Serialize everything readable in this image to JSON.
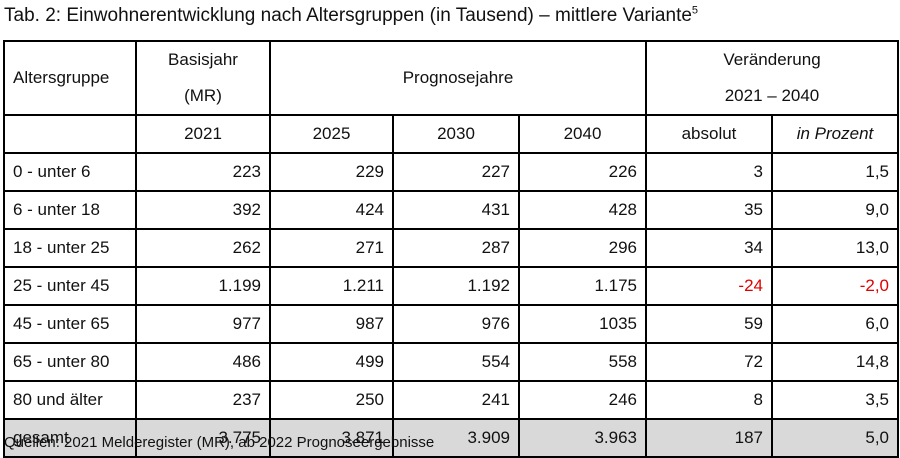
{
  "title": "Tab. 2: Einwohnerentwicklung nach Altersgruppen (in Tausend) – mittlere Variante",
  "title_footnote": "5",
  "header": {
    "altersgruppe": "Altersgruppe",
    "basisjahr_line1": "Basisjahr",
    "basisjahr_line2": "(MR)",
    "prognosejahre": "Prognosejahre",
    "veraenderung_line1": "Veränderung",
    "veraenderung_line2": "2021 – 2040",
    "year_2021": "2021",
    "year_2025": "2025",
    "year_2030": "2030",
    "year_2040": "2040",
    "absolut": "absolut",
    "in_prozent": "in Prozent"
  },
  "rows": [
    {
      "group": "0 - unter 6",
      "y2021": "223",
      "y2025": "229",
      "y2030": "227",
      "y2040": "226",
      "absolut": "3",
      "prozent": "1,5"
    },
    {
      "group": "6 - unter 18",
      "y2021": "392",
      "y2025": "424",
      "y2030": "431",
      "y2040": "428",
      "absolut": "35",
      "prozent": "9,0"
    },
    {
      "group": "18 - unter 25",
      "y2021": "262",
      "y2025": "271",
      "y2030": "287",
      "y2040": "296",
      "absolut": "34",
      "prozent": "13,0"
    },
    {
      "group": "25 - unter 45",
      "y2021": "1.199",
      "y2025": "1.211",
      "y2030": "1.192",
      "y2040": "1.175",
      "absolut": "-24",
      "prozent": "-2,0"
    },
    {
      "group": "45 - unter 65",
      "y2021": "977",
      "y2025": "987",
      "y2030": "976",
      "y2040": "1035",
      "absolut": "59",
      "prozent": "6,0"
    },
    {
      "group": "65 - unter 80",
      "y2021": "486",
      "y2025": "499",
      "y2030": "554",
      "y2040": "558",
      "absolut": "72",
      "prozent": "14,8"
    },
    {
      "group": "80 und älter",
      "y2021": "237",
      "y2025": "250",
      "y2030": "241",
      "y2040": "246",
      "absolut": "8",
      "prozent": "3,5"
    }
  ],
  "total": {
    "group": "gesamt",
    "y2021": "3.775",
    "y2025": "3.871",
    "y2030": "3.909",
    "y2040": "3.963",
    "absolut": "187",
    "prozent": "5,0"
  },
  "negative_color": "#e00000",
  "total_row_color": "#d9d9d9",
  "source": "Quellen: 2021 Melderegister (MR), ab 2022 Prognoseergebnisse"
}
